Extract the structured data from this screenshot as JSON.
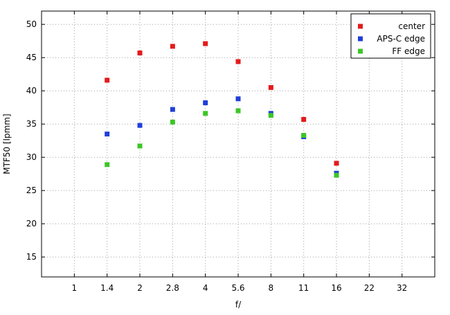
{
  "chart_data": {
    "type": "scatter",
    "title": "",
    "xlabel": "f/",
    "ylabel": "MTF50 [lpmm]",
    "x_scale": "log2",
    "xlim": [
      0.707,
      45.25
    ],
    "ylim": [
      12,
      52
    ],
    "x_ticks": [
      {
        "value": 1,
        "label": "1"
      },
      {
        "value": 1.41421,
        "label": "1.4"
      },
      {
        "value": 2,
        "label": "2"
      },
      {
        "value": 2.82843,
        "label": "2.8"
      },
      {
        "value": 4,
        "label": "4"
      },
      {
        "value": 5.65685,
        "label": "5.6"
      },
      {
        "value": 8,
        "label": "8"
      },
      {
        "value": 11.3137,
        "label": "11"
      },
      {
        "value": 16,
        "label": "16"
      },
      {
        "value": 22.6274,
        "label": "22"
      },
      {
        "value": 32,
        "label": "32"
      }
    ],
    "y_ticks": [
      15,
      20,
      25,
      30,
      35,
      40,
      45,
      50
    ],
    "grid": true,
    "legend_position": "top-right",
    "series": [
      {
        "name": "center",
        "color": "#e41a1c",
        "x": [
          1.41421,
          2,
          2.82843,
          4,
          5.65685,
          8,
          11.3137,
          16
        ],
        "y": [
          41.6,
          45.7,
          46.7,
          47.1,
          44.4,
          40.5,
          35.7,
          29.1
        ]
      },
      {
        "name": "APS-C edge",
        "color": "#1f3fd8",
        "x": [
          1.41421,
          2,
          2.82843,
          4,
          5.65685,
          8,
          11.3137,
          16
        ],
        "y": [
          33.5,
          34.8,
          37.2,
          38.2,
          38.8,
          36.6,
          33.1,
          27.6
        ]
      },
      {
        "name": "FF edge",
        "color": "#3cc626",
        "x": [
          1.41421,
          2,
          2.82843,
          4,
          5.65685,
          8,
          11.3137,
          16
        ],
        "y": [
          28.9,
          31.7,
          35.3,
          36.6,
          37.0,
          36.3,
          33.3,
          27.3
        ]
      }
    ]
  }
}
